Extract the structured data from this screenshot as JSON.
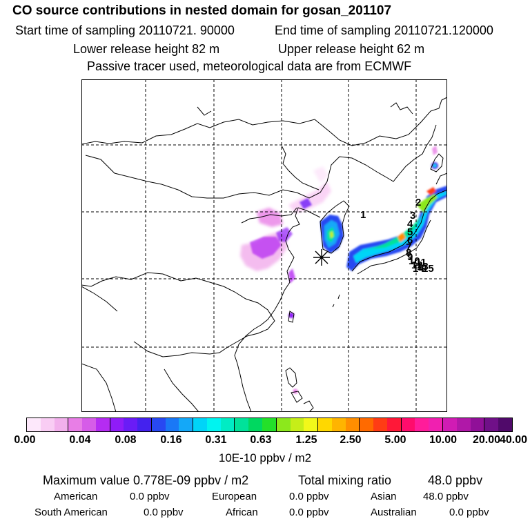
{
  "header": {
    "title": "CO  source contributions in nested domain for gosan_201107",
    "start": "Start time of sampling 20110721. 90000",
    "end": "End time of sampling 20110721.120000",
    "lower": "Lower release height   82 m",
    "upper": "Upper release height   62 m",
    "note": "Passive tracer used, meteorological data are from ECMWF"
  },
  "map": {
    "station_marker": "asterisk-marker",
    "labels": [
      "1",
      "2",
      "3",
      "4",
      "5",
      "6",
      "7",
      "8",
      "9",
      "10",
      "11",
      "12",
      "13",
      "14",
      "15"
    ]
  },
  "colorbar": {
    "colors": [
      "#fde8fb",
      "#f9cdf4",
      "#f2b0ec",
      "#e87ee6",
      "#d65ce8",
      "#b52cf2",
      "#8f1cf8",
      "#6a1cf6",
      "#4422ee",
      "#2848f2",
      "#1a78f6",
      "#14a8f8",
      "#00d4f8",
      "#00f4f0",
      "#00ecc4",
      "#00e29a",
      "#00d860",
      "#24e02a",
      "#8ce81c",
      "#c6ee18",
      "#f2f81a",
      "#ffd800",
      "#ffb400",
      "#ff8e00",
      "#ff6a00",
      "#ff3c14",
      "#ff1838",
      "#ff0c6c",
      "#ff1c9a",
      "#f020b0",
      "#d01cb4",
      "#b018a8",
      "#901098",
      "#701088",
      "#500a6a"
    ],
    "ticks": [
      "0.00",
      "0.04",
      "0.08",
      "0.16",
      "0.31",
      "0.63",
      "1.25",
      "2.50",
      "5.00",
      "10.00",
      "20.00",
      "40.00"
    ],
    "units": "10E-10 ppbv / m2"
  },
  "stats": {
    "max_label": "Maximum value  0.778E-09 ppbv / m2",
    "total_label": "Total mixing ratio",
    "total_value": "48.0 ppbv",
    "american_label": "American",
    "american_value": "0.0 ppbv",
    "european_label": "European",
    "european_value": "0.0 ppbv",
    "asian_label": "Asian",
    "asian_value": "48.0 ppbv",
    "south_american_label": "South American",
    "south_american_value": "0.0 ppbv",
    "african_label": "African",
    "african_value": "0.0 ppbv",
    "australian_label": "Australian",
    "australian_value": "0.0 ppbv"
  }
}
